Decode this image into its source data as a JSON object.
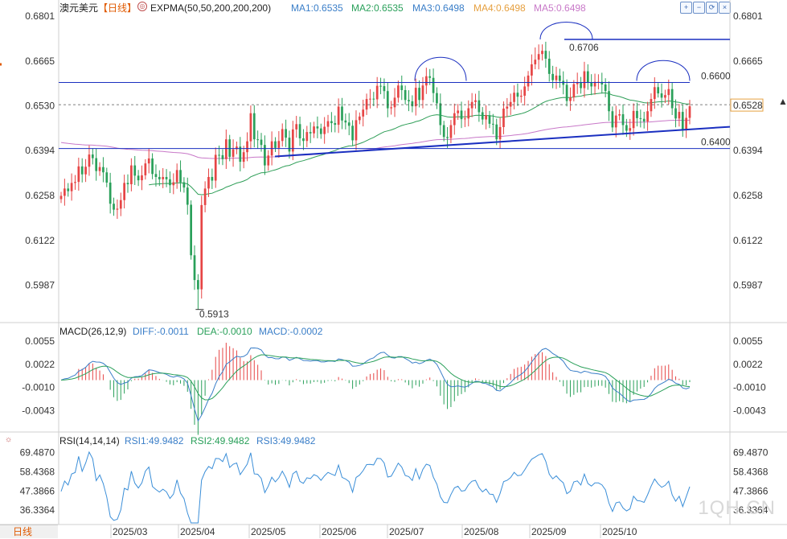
{
  "header": {
    "title": "澳元美元",
    "period": "【日线】",
    "indicator": "EXPMA(50,50,200,200,200)",
    "ma1": "MA1:0.6535",
    "ma2": "MA2:0.6535",
    "ma3": "MA3:0.6498",
    "ma4": "MA4:0.6498",
    "ma5": "MA5:0.6498"
  },
  "toolbar": {
    "zoom_in": "+",
    "zoom_out": "−",
    "refresh": "⟳",
    "close": "×"
  },
  "macd_header": {
    "title": "MACD(26,12,9)",
    "diff": "DIFF:-0.0011",
    "dea": "DEA:-0.0010",
    "macd": "MACD:-0.0002"
  },
  "rsi_header": {
    "title": "RSI(14,14,14)",
    "rsi1": "RSI1:49.9482",
    "rsi2": "RSI2:49.9482",
    "rsi3": "RSI3:49.9482"
  },
  "period_badge": "日线",
  "watermark": "1QH.CN",
  "colors": {
    "up": "#e64545",
    "down": "#2aa05a",
    "line_blue": "#1a2fc0",
    "ma_green": "#2e9e57",
    "ma_pink": "#c878c8",
    "diff": "#3a7ec8",
    "dea": "#2aa05a",
    "rsi": "#3a8ed8"
  },
  "chart_data": {
    "type": "candlestick",
    "price_axis_ticks": [
      "0.6801",
      "0.6665",
      "0.6530",
      "0.6394",
      "0.6258",
      "0.6122",
      "0.5987"
    ],
    "price_range": [
      0.59,
      0.6801
    ],
    "current_price_label": "0.6528",
    "annotations": {
      "high": "0.6706",
      "low": "0.5913",
      "level_upper": "0.6600",
      "level_lower": "0.6400"
    },
    "dates": [
      "2025/03",
      "2025/04",
      "2025/05",
      "2025/06",
      "2025/07",
      "2025/08",
      "2025/09",
      "2025/10"
    ],
    "macd_axis_ticks": [
      "0.0055",
      "0.0022",
      "-0.0010",
      "-0.0043"
    ],
    "macd_range": [
      -0.0065,
      0.0065
    ],
    "rsi_axis_ticks": [
      "69.4870",
      "58.4368",
      "47.3866",
      "36.3364"
    ],
    "rsi_range": [
      29,
      73
    ],
    "closes": [
      0.6257,
      0.6279,
      0.6271,
      0.6296,
      0.6299,
      0.6346,
      0.6322,
      0.6345,
      0.6382,
      0.6371,
      0.6332,
      0.6344,
      0.6328,
      0.6297,
      0.6233,
      0.6215,
      0.6218,
      0.6244,
      0.6296,
      0.6292,
      0.6349,
      0.6318,
      0.6304,
      0.6319,
      0.6355,
      0.637,
      0.6323,
      0.6314,
      0.6307,
      0.6314,
      0.6307,
      0.6289,
      0.6298,
      0.6335,
      0.6298,
      0.6282,
      0.623,
      0.6077,
      0.6002,
      0.5974,
      0.6229,
      0.6279,
      0.6314,
      0.6303,
      0.6381,
      0.638,
      0.6368,
      0.6428,
      0.6375,
      0.6398,
      0.6406,
      0.636,
      0.6389,
      0.6422,
      0.6507,
      0.6428,
      0.6427,
      0.6411,
      0.6349,
      0.6379,
      0.6422,
      0.6402,
      0.6423,
      0.6459,
      0.6433,
      0.6391,
      0.6458,
      0.6474,
      0.6431,
      0.6423,
      0.645,
      0.6446,
      0.6467,
      0.6461,
      0.6444,
      0.6466,
      0.6483,
      0.6477,
      0.6472,
      0.6527,
      0.6485,
      0.6479,
      0.6469,
      0.6425,
      0.6486,
      0.6497,
      0.6518,
      0.655,
      0.6551,
      0.6549,
      0.659,
      0.6589,
      0.6574,
      0.6522,
      0.6525,
      0.6554,
      0.6591,
      0.6577,
      0.6547,
      0.6543,
      0.6528,
      0.6584,
      0.6547,
      0.6591,
      0.6619,
      0.6614,
      0.6568,
      0.6537,
      0.6471,
      0.6435,
      0.6432,
      0.6471,
      0.6507,
      0.6515,
      0.6489,
      0.6491,
      0.6522,
      0.6541,
      0.6546,
      0.651,
      0.6488,
      0.6501,
      0.6475,
      0.6473,
      0.6428,
      0.6465,
      0.6521,
      0.6527,
      0.6541,
      0.6569,
      0.6557,
      0.656,
      0.6588,
      0.6621,
      0.6655,
      0.6669,
      0.6686,
      0.6696,
      0.6672,
      0.6626,
      0.6607,
      0.6621,
      0.6605,
      0.6593,
      0.6544,
      0.6555,
      0.6595,
      0.66,
      0.6583,
      0.6634,
      0.6599,
      0.6588,
      0.6602,
      0.6602,
      0.6594,
      0.6574,
      0.6513,
      0.6464,
      0.65,
      0.6504,
      0.6471,
      0.6454,
      0.6462,
      0.6514,
      0.6492,
      0.649,
      0.6482,
      0.6513,
      0.655,
      0.6586,
      0.6567,
      0.6554,
      0.6562,
      0.658,
      0.6522,
      0.6491,
      0.6511,
      0.6459,
      0.6493,
      0.6528
    ],
    "rsi_values": [
      47.1,
      53.1,
      50.8,
      57.2,
      58.0,
      67.3,
      58.7,
      63.5,
      69.8,
      65.9,
      53.3,
      56.6,
      51.7,
      43.9,
      32.5,
      30.5,
      31.1,
      36.5,
      48.9,
      48.0,
      58.8,
      51.9,
      49.1,
      52.1,
      58.8,
      61.2,
      50.0,
      48.2,
      46.8,
      48.4,
      46.9,
      43.1,
      45.6,
      53.8,
      46.2,
      43.0,
      34.6,
      19.6,
      15.4,
      14.0,
      53.6,
      58.5,
      61.5,
      60.2,
      66.1,
      66.0,
      64.3,
      68.9,
      60.9,
      62.8,
      63.5,
      56.8,
      59.8,
      62.8,
      69.4,
      57.2,
      57.0,
      54.6,
      46.4,
      50.2,
      55.3,
      52.6,
      55.0,
      58.8,
      55.0,
      49.5,
      57.3,
      58.8,
      52.9,
      51.8,
      55.0,
      54.5,
      56.8,
      55.9,
      53.5,
      56.1,
      58.1,
      57.1,
      56.3,
      62.3,
      55.2,
      54.3,
      52.8,
      46.7,
      55.2,
      56.5,
      59.1,
      62.6,
      62.7,
      62.4,
      66.2,
      66.0,
      63.5,
      55.4,
      55.9,
      59.5,
      63.4,
      61.1,
      56.3,
      55.7,
      53.4,
      60.2,
      54.3,
      59.8,
      62.8,
      62.1,
      55.3,
      51.3,
      44.1,
      40.8,
      40.6,
      45.3,
      49.2,
      50.1,
      47.3,
      47.6,
      51.0,
      53.0,
      53.5,
      49.3,
      46.9,
      48.5,
      45.6,
      45.4,
      40.8,
      46.0,
      52.8,
      53.5,
      55.1,
      58.1,
      56.2,
      56.5,
      59.5,
      62.8,
      65.7,
      66.9,
      68.2,
      68.9,
      64.5,
      57.0,
      54.4,
      56.1,
      53.8,
      52.1,
      45.8,
      47.3,
      52.6,
      53.2,
      50.8,
      57.1,
      51.7,
      50.2,
      52.0,
      52.0,
      50.9,
      48.0,
      40.4,
      35.6,
      40.6,
      41.1,
      37.6,
      35.9,
      37.1,
      44.4,
      41.9,
      41.6,
      40.8,
      45.2,
      50.1,
      54.3,
      51.4,
      49.5,
      50.6,
      53.0,
      45.1,
      41.5,
      44.4,
      38.4,
      44.0,
      49.9
    ]
  }
}
